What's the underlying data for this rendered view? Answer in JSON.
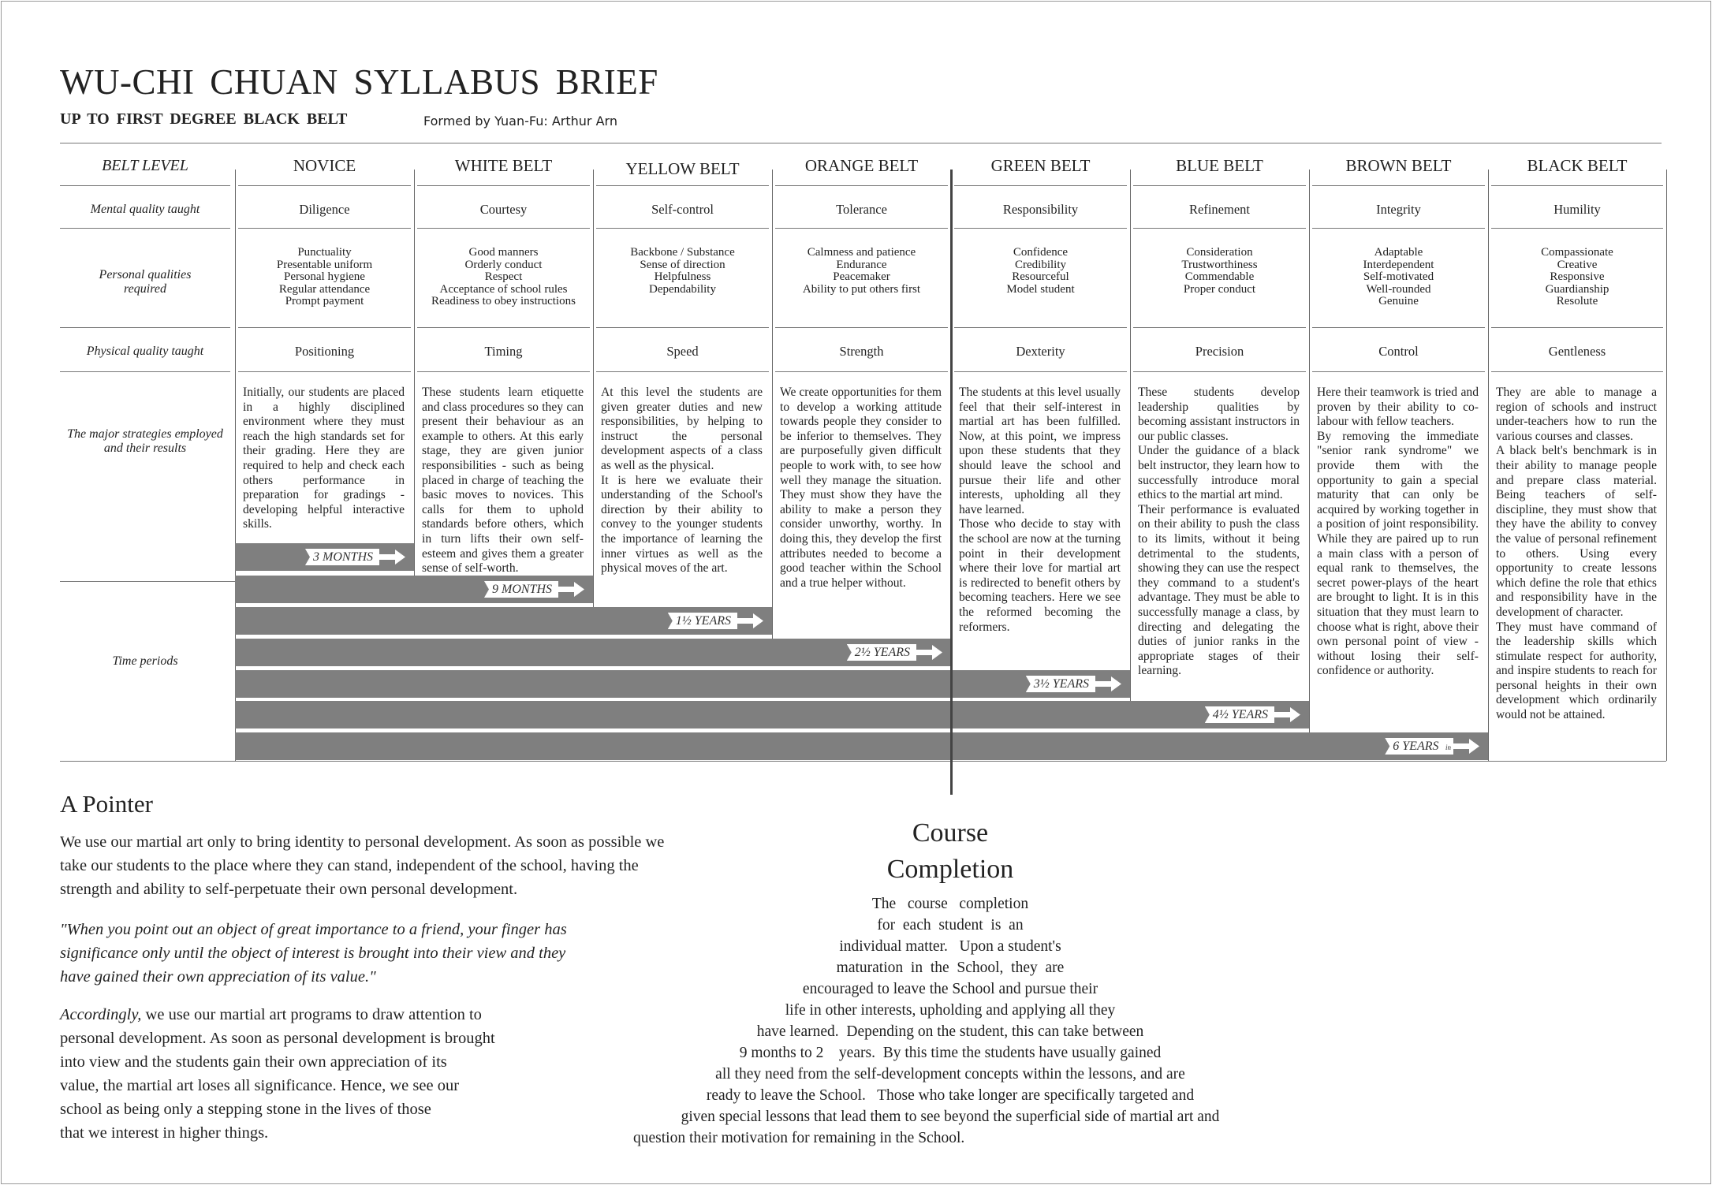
{
  "header": {
    "title": "WU-CHI CHUAN SYLLABUS BRIEF",
    "subtitle": "UP TO FIRST DEGREE BLACK BELT",
    "formed_by": "Formed by Yuan-Fu:  Arthur Arn"
  },
  "row_labels": {
    "belt_level": "BELT LEVEL",
    "mental": "Mental quality taught",
    "personal": "Personal qualities required",
    "physical": "Physical quality taught",
    "strategies": "The major strategies employed and their results",
    "time": "Time periods"
  },
  "belts": [
    {
      "name": "NOVICE",
      "mental": "Diligence",
      "qualities": [
        "Punctuality",
        "Presentable uniform",
        "Personal hygiene",
        "Regular attendance",
        "Prompt payment"
      ],
      "physical": "Positioning",
      "strategy": [
        "Initially, our students are placed in a highly disciplined environment where they must reach the high standards set for their grading.  Here they are required to help and check each others performance in preparation for gradings - developing helpful interactive skills."
      ],
      "time": "3 MONTHS"
    },
    {
      "name": "WHITE  BELT",
      "mental": "Courtesy",
      "qualities": [
        "Good manners",
        "Orderly conduct",
        "Respect",
        "Acceptance of school rules",
        "Readiness to obey instructions"
      ],
      "physical": "Timing",
      "strategy": [
        "These students learn etiquette and class procedures so they can present their behaviour as an example to others.  At this early stage, they are given junior responsibilities - such as being placed in charge of teaching the basic moves to novices.  This calls for them to uphold standards before others, which in turn lifts their own self-esteem and gives them a greater sense of self-worth."
      ],
      "time": "9 MONTHS"
    },
    {
      "name": "YELLOW  BELT",
      "mental": "Self-control",
      "qualities": [
        "Backbone / Substance",
        "Sense of direction",
        "Helpfulness",
        "Dependability"
      ],
      "physical": "Speed",
      "strategy": [
        "At this level the students are given greater duties and new responsibilities, by helping to instruct the personal development aspects of a class as well as the physical.",
        "It is here we evaluate their understanding of the School's direction by their ability to convey to the younger students the importance of learning the inner virtues as well as the physical moves of the art."
      ],
      "time": "1½  YEARS"
    },
    {
      "name": "ORANGE  BELT",
      "mental": "Tolerance",
      "qualities": [
        "Calmness and patience",
        "Endurance",
        "Peacemaker",
        "Ability to put others first"
      ],
      "physical": "Strength",
      "strategy": [
        "We create opportunities for them to develop a working attitude towards people they consider to be inferior to themselves.  They are purposefully given difficult people to work with, to see how well they manage the situation. They must show they have the ability to make a person they consider unworthy, worthy.  In doing this, they develop the first attributes needed to become a good teacher within the School and a true helper without."
      ],
      "time": "2½  YEARS"
    },
    {
      "name": "GREEN  BELT",
      "mental": "Responsibility",
      "qualities": [
        "Confidence",
        "Credibility",
        "Resourceful",
        "Model student"
      ],
      "physical": "Dexterity",
      "strategy": [
        "The students at this level usually feel that their self-interest in martial art has been fulfilled.  Now, at this point, we impress upon these students that they should leave the school and pursue their life and other interests, upholding all they have learned.",
        "Those who decide to stay with the school are now at the turning point in their development where their love for martial art is redirected to benefit others by becoming teachers.  Here we see the reformed becoming the reformers."
      ],
      "time": "3½  YEARS"
    },
    {
      "name": "BLUE  BELT",
      "mental": "Refinement",
      "qualities": [
        "Consideration",
        "Trustworthiness",
        "Commendable",
        "Proper conduct"
      ],
      "physical": "Precision",
      "strategy": [
        "These students develop leadership qualities by becoming assistant instructors in our public classes.",
        "Under the guidance of a black belt instructor, they learn how to successfully introduce moral ethics to the martial art mind.",
        "Their performance is evaluated on their ability to push the class to its limits, without it being detrimental to the students, showing they can use the respect they command to a student's advantage. They must be able to successfully manage a class, by directing and delegating the duties of junior ranks in the appropriate stages of their learning."
      ],
      "time": "4½  YEARS"
    },
    {
      "name": "BROWN  BELT",
      "mental": "Integrity",
      "qualities": [
        "Adaptable",
        "Interdependent",
        "Self-motivated",
        "Well-rounded",
        "Genuine"
      ],
      "physical": "Control",
      "strategy": [
        "Here their teamwork is tried and proven by their ability to co-labour with fellow teachers.",
        "By removing the immediate \"senior rank syndrome\" we provide them with the opportunity to gain a special maturity that can only be acquired by working together in a position of joint responsibility.  While they are paired up to run a main class with a person of equal rank to themselves, the secret power-plays of the heart are brought to light.  It is in this situation that they must learn to choose what is right, above their own personal point of view - without losing their self-confidence or authority."
      ],
      "time": "6  YEARS",
      "time_note": "min"
    },
    {
      "name": "BLACK  BELT",
      "mental": "Humility",
      "qualities": [
        "Compassionate",
        "Creative",
        "Responsive",
        "Guardianship",
        "Resolute"
      ],
      "physical": "Gentleness",
      "strategy": [
        "They are able to manage a region of schools and instruct under-teachers how to run the various courses and classes.",
        "A black belt's benchmark is in their ability to manage people and prepare class material.  Being teachers of self-discipline, they must show that they have the ability to convey the value of personal refinement to others.  Using every opportunity to create lessons which define the role that ethics and responsibility have in the development of character.",
        "They must have command of the leadership skills which stimulate respect for authority, and inspire students to reach for personal heights in their own development which ordinarily would not be attained."
      ]
    }
  ],
  "time_bar_color": "#7f7f7f",
  "pointer": {
    "title": "A Pointer",
    "para1": [
      "We use our martial art only to bring identity to personal development.  As soon as possible we",
      "take our students to the place where they can stand, independent of the school, having the",
      "strength and ability to self-perpetuate their own personal development."
    ],
    "quote": [
      "\"When you point out an object of great importance to a friend, your finger has",
      "significance only until the object of interest is brought into their view and they",
      "have gained their own appreciation of its value.\""
    ],
    "para2_lead": "Accordingly,",
    "para2": [
      " we use our martial art programs to draw attention to",
      "personal development.  As soon as personal development is brought",
      "into view and the students gain their own appreciation of its",
      "value, the martial art loses all significance.  Hence, we see our",
      "school as being only a stepping stone in the lives of those",
      "that we interest in higher things."
    ]
  },
  "course_completion": {
    "title1": "Course",
    "title2": "Completion",
    "lines": [
      "The   course   completion",
      "for  each  student  is  an",
      "individual matter.   Upon a student's",
      "maturation  in  the  School,  they  are",
      "encouraged to leave the School and pursue their",
      "life in other interests, upholding and applying all they",
      "have learned.  Depending on the student, this can take between",
      "9 months to 2    years.  By this time the students have usually gained",
      "all they need from the self-development concepts within the lessons, and are",
      "ready to leave the School.   Those who take longer are specifically targeted and",
      "given special lessons that lead them to see beyond the superficial side of martial art and",
      "question their motivation for remaining in the School."
    ]
  }
}
